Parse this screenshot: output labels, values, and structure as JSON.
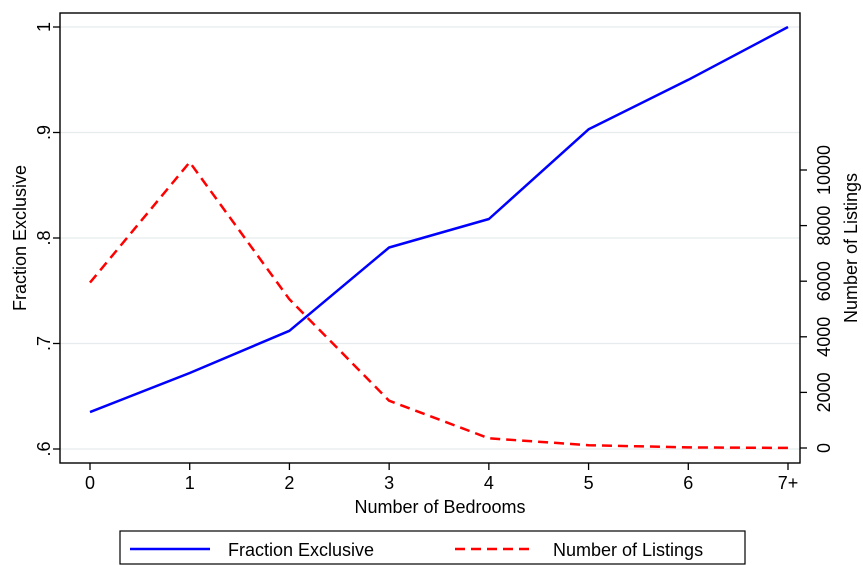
{
  "chart_data": {
    "type": "line",
    "xlabel": "Number of Bedrooms",
    "ylabel_left": "Fraction Exclusive",
    "ylabel_right": "Number of Listings",
    "categories": [
      "0",
      "1",
      "2",
      "3",
      "4",
      "5",
      "6",
      "7+"
    ],
    "yleft_lim": [
      0.6,
      1.0
    ],
    "yleft_ticks": [
      0.6,
      0.7,
      0.8,
      0.9,
      1.0
    ],
    "yleft_tick_labels": [
      ".6",
      ".7",
      ".8",
      ".9",
      "1"
    ],
    "yright_ticks": [
      0,
      2000,
      4000,
      6000,
      8000,
      10000
    ],
    "yright_tick_labels": [
      "0",
      "2000",
      "4000",
      "6000",
      "8000",
      "10000"
    ],
    "grid": true,
    "legend_position": "bottom",
    "series": [
      {
        "name": "Fraction Exclusive",
        "axis": "left",
        "style": "solid",
        "color": "#0000ff",
        "values": [
          0.635,
          0.672,
          0.712,
          0.791,
          0.818,
          0.903,
          0.95,
          1.0
        ]
      },
      {
        "name": "Number of Listings",
        "axis": "right",
        "style": "dashed",
        "color": "#ff0000",
        "values": [
          5950,
          10280,
          5350,
          1700,
          350,
          100,
          20,
          5
        ]
      }
    ]
  }
}
